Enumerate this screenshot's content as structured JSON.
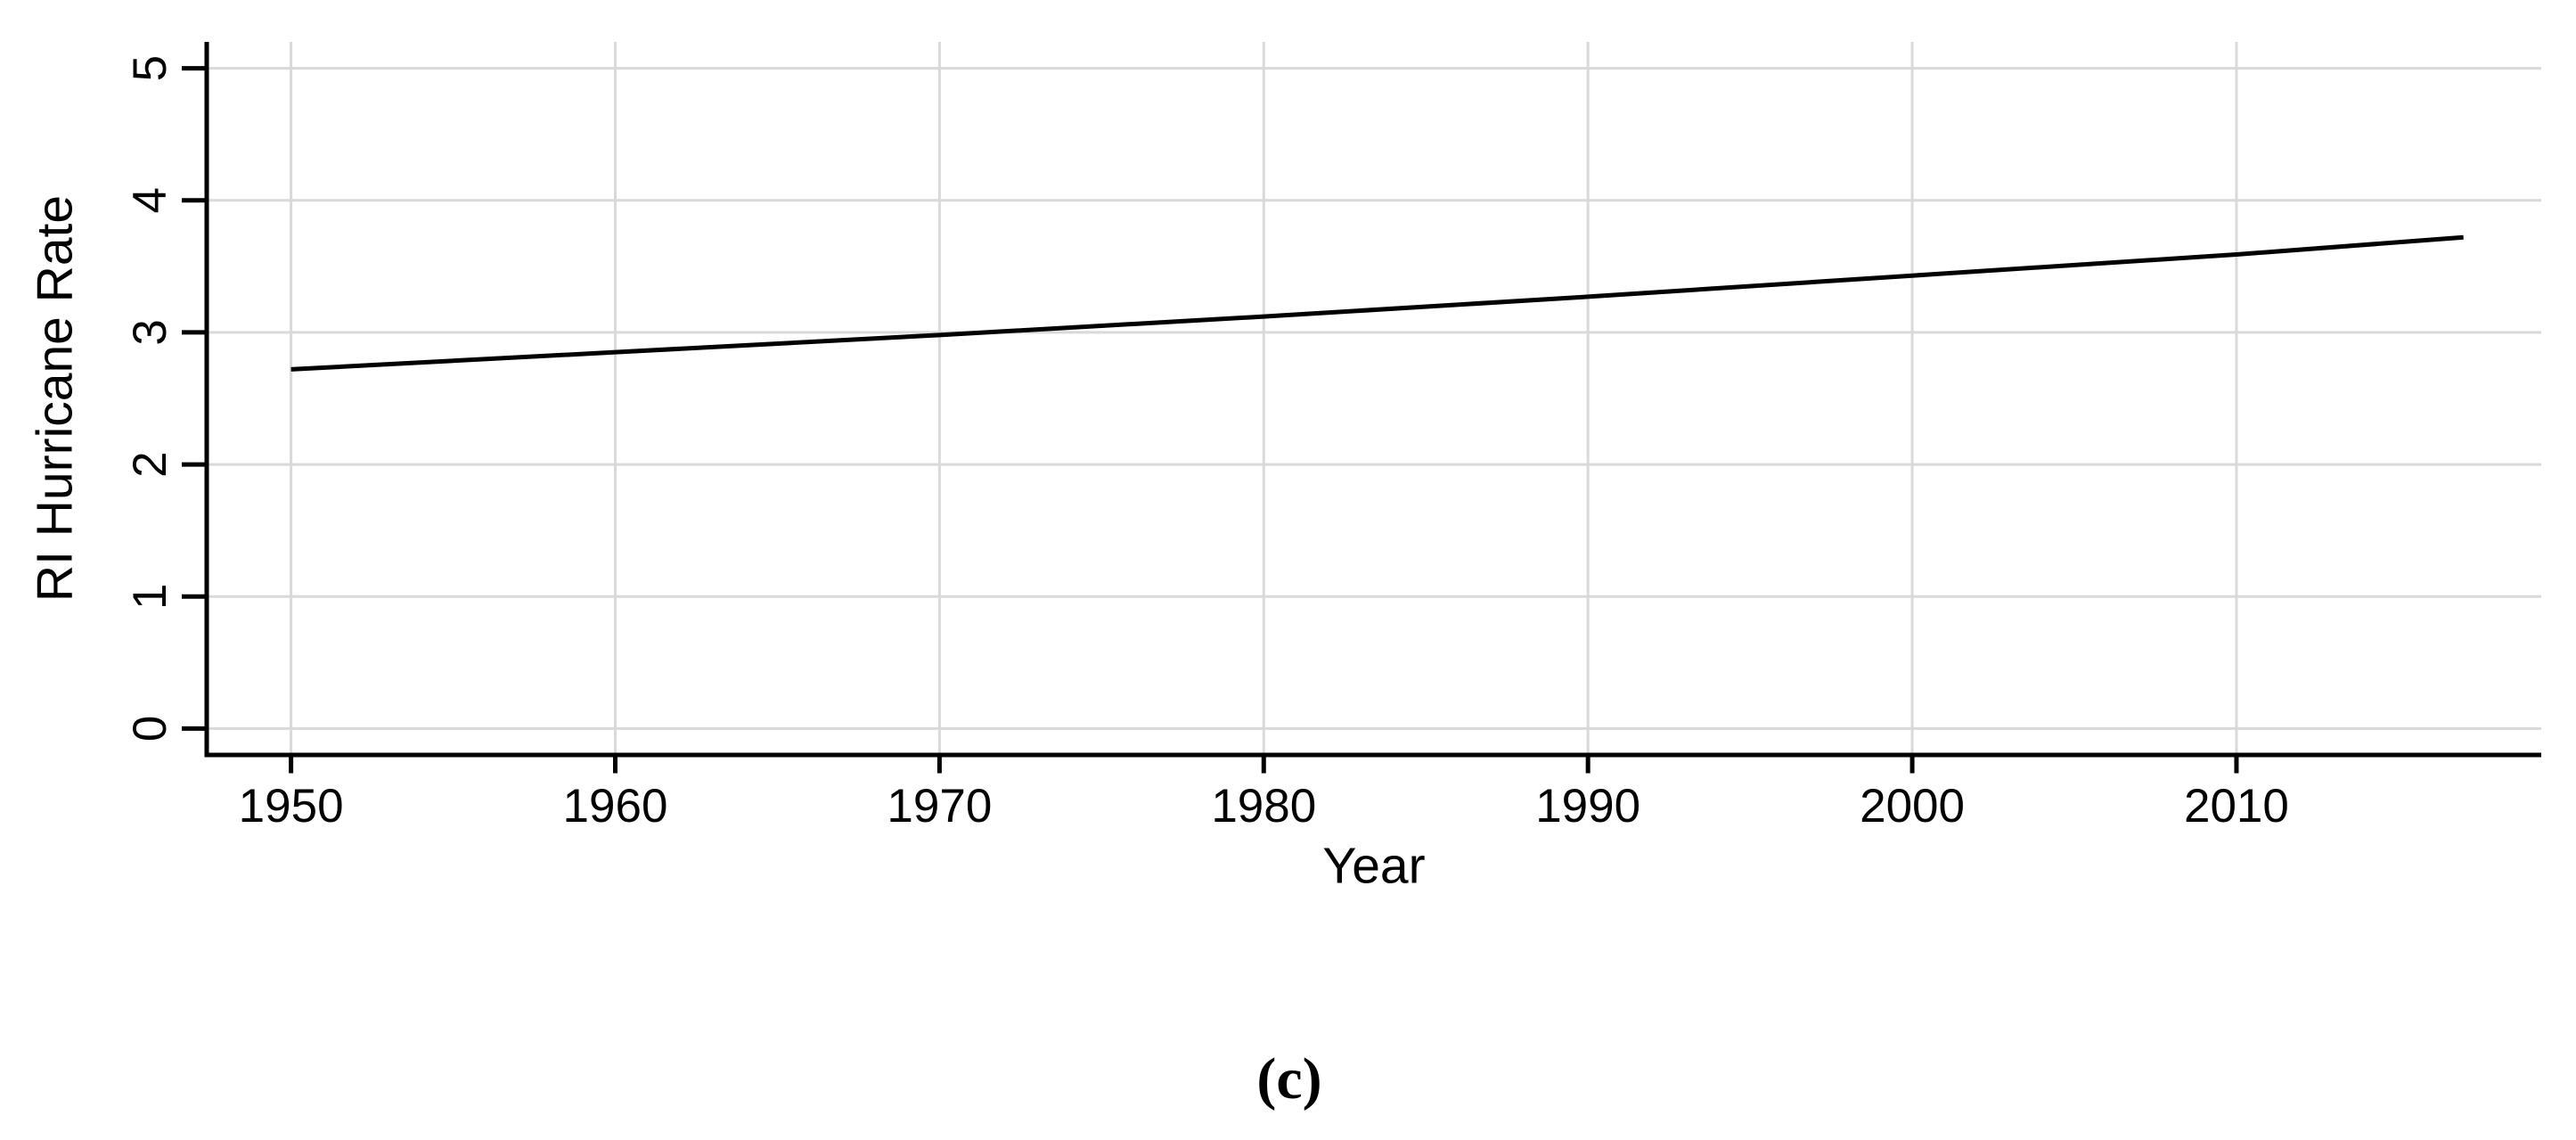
{
  "figure": {
    "caption": "(c)",
    "background": "#ffffff"
  },
  "chart_data": {
    "type": "line",
    "title": "",
    "xlabel": "Year",
    "ylabel": "RI Hurricane Rate",
    "xlim": [
      1947.4,
      2019.4
    ],
    "ylim": [
      -0.2,
      5.2
    ],
    "x_ticks": [
      1950,
      1960,
      1970,
      1980,
      1990,
      2000,
      2010
    ],
    "y_ticks": [
      0,
      1,
      2,
      3,
      4,
      5
    ],
    "grid": true,
    "legend": "none",
    "series": [
      {
        "name": "ri-hurricane-rate-trend",
        "x": [
          1950,
          1960,
          1970,
          1980,
          1990,
          2000,
          2010,
          2017
        ],
        "y": [
          2.72,
          2.85,
          2.98,
          3.12,
          3.27,
          3.43,
          3.59,
          3.72
        ],
        "color": "#000000"
      }
    ],
    "colors": {
      "grid": "#d9d9d9",
      "axis": "#000000",
      "text": "#000000",
      "line": "#000000"
    }
  }
}
